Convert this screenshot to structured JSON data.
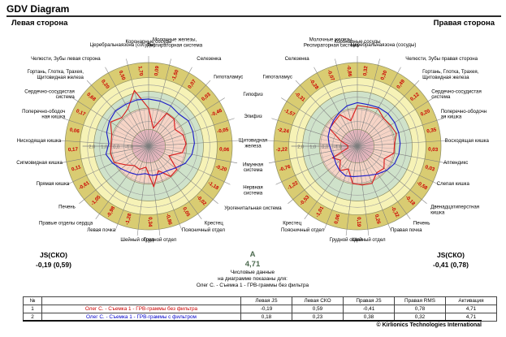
{
  "header": {
    "title": "GDV Diagram",
    "left_title": "Левая сторона",
    "right_title": "Правая сторона"
  },
  "left_summary": {
    "label": "JS(СКО)",
    "value": "-0,19 (0,59)"
  },
  "right_summary": {
    "label": "JS(СКО)",
    "value": "-0,41 (0,78)"
  },
  "center_info": {
    "grade": "А",
    "activation": "4,71",
    "note_lines": [
      "Числовые данные",
      "на диаграмме показаны для:",
      "Олег С. - Съемка 1 - ГРВ-граммы без фильтра"
    ]
  },
  "chart_data": [
    {
      "type": "radar",
      "title": "Левая сторона",
      "scale_ticks": [
        "2,0",
        "1,0",
        "0,0",
        "-1,0"
      ],
      "scale_values": [
        2.0,
        1.0,
        0.0,
        -1.0
      ],
      "categories": [
        "Коронарные сосуды",
        "Молочные железы,\nРеспираторная система",
        "Селезенка",
        "Гипоталамус",
        "Гипофиз",
        "Эпифиз",
        "Щитовидная\nжелеза",
        "Имунная\nсистема",
        "Нервная\nсистема",
        "Урогенитальная система",
        "Крестец",
        "Поясничный отдел",
        "Грудной отдел",
        "Шейный отдел",
        "Левая почка",
        "Правые отделы сердца",
        "Печень",
        "Прямая кишка",
        "Сигмовидная кишка",
        "Нисходящая кишка",
        "Поперечно-ободоч\nная кишка",
        "Сердечно-сосудистая\nсистема",
        "Гортань, Глотка, Трахея,\nЩитовидная железа",
        "Челюсти, Зубы левая сторона",
        "Церебральнаязона (сосуды)"
      ],
      "value_labels": [
        "0,09",
        "-1,50",
        "0,07",
        "0,03",
        "-0,46",
        "-0,05",
        "0,06",
        "-0,20",
        "-1,18",
        "-0,02",
        "0,05",
        "-0,86",
        "0,34",
        "-1,28",
        "-0,98",
        "-1,05",
        "-0,61",
        "0,11",
        "0,17",
        "0,06",
        "0,17",
        "0,68",
        "0,20",
        "0,50",
        "1,70"
      ],
      "series": [
        {
          "name": "ГРВ-граммы без фильтра",
          "color": "#d81e1e",
          "values": [
            0.09,
            -1.5,
            0.07,
            0.03,
            -0.46,
            -0.05,
            0.06,
            -0.2,
            -1.18,
            -0.02,
            0.05,
            -0.86,
            0.34,
            -1.28,
            -0.98,
            -1.05,
            -0.61,
            0.11,
            0.17,
            0.06,
            0.17,
            0.68,
            0.2,
            0.5,
            1.7
          ]
        },
        {
          "name": "ГРВ-граммы с фильтром",
          "color": "#1e1ec8",
          "values": [
            0.85,
            0.8,
            0.75,
            0.6,
            0.85,
            0.8,
            0.75,
            0.6,
            0.3,
            -0.2,
            -0.5,
            -0.55,
            -0.6,
            -0.75,
            -0.5,
            -0.35,
            -0.1,
            0.25,
            0.55,
            0.25,
            0.6,
            0.8,
            0.95,
            0.9,
            0.9
          ]
        }
      ]
    },
    {
      "type": "radar",
      "title": "Правая сторона",
      "scale_ticks": [
        "2,0",
        "1,0",
        "0,0",
        "-1,0"
      ],
      "scale_values": [
        2.0,
        1.0,
        0.0,
        -1.0
      ],
      "categories": [
        "Коронарные сосуды",
        "Церебральнаязона (сосуды)",
        "Челюсти, Зубы правая сторона",
        "Гортань, Глотка, Трахея,\nЩитовидная железа",
        "Сердечно-сосудистая\nсистема",
        "Поперечно-ободочн\nая кишка",
        "Восходящая кишка",
        "Аппендикс",
        "Слепая кишка",
        "Двенадцатиперстная\nкишка",
        "Печень",
        "Правая почка",
        "Шейный отдел",
        "Грудной отдел",
        "Поясничный отдел",
        "Крестец",
        "Урогенитальная система",
        "Нервная\nсистема",
        "Имунная\nсистема",
        "Щитовидная\nжелеза",
        "Эпифиз",
        "Гипофиз",
        "Гипоталамус",
        "Селезенка",
        "Молочные железы,\nРеспираторная система"
      ],
      "value_labels": [
        "0,32",
        "0,30",
        "0,49",
        "0,12",
        "0,20",
        "0,35",
        "0,03",
        "0,03",
        "-0,58",
        "-0,18",
        "-0,32",
        "0,26",
        "0,19",
        "0,06",
        "-1,01",
        "-0,53",
        "-1,22",
        "-0,76",
        "-2,22",
        "-2,24",
        "-1,57",
        "-0,31",
        "-0,28",
        "-0,07",
        "-0,86"
      ],
      "series": [
        {
          "name": "ГРВ-граммы без фильтра",
          "color": "#d81e1e",
          "values": [
            0.32,
            0.3,
            0.49,
            0.12,
            0.2,
            0.35,
            0.03,
            0.03,
            -0.58,
            -0.18,
            -0.32,
            0.26,
            0.19,
            0.06,
            -1.01,
            -0.53,
            -1.22,
            -0.76,
            -2.22,
            -2.24,
            -1.57,
            -0.31,
            -0.28,
            -0.07,
            -0.86
          ]
        },
        {
          "name": "ГРВ-граммы с фильтром",
          "color": "#1e1ec8",
          "values": [
            0.55,
            0.5,
            0.6,
            0.65,
            0.6,
            0.55,
            0.5,
            0.45,
            0.35,
            0.1,
            -0.2,
            -0.45,
            -0.55,
            -0.5,
            -0.4,
            -0.55,
            -0.75,
            -0.9,
            -0.85,
            -0.7,
            -0.5,
            -0.35,
            -0.15,
            0.1,
            0.4
          ]
        }
      ]
    }
  ],
  "table": {
    "headers": [
      "№",
      "",
      "Левая JS",
      "Левая СКО",
      "Правая JS",
      "Правая RMS",
      "Активация"
    ],
    "rows": [
      {
        "num": "1",
        "name": "Олег С. - Съемка 1 - ГРВ-граммы без фильтра",
        "values": [
          "-0,19",
          "0,59",
          "-0,41",
          "0,78",
          "4,71"
        ]
      },
      {
        "num": "2",
        "name": "Олег С. - Съемка 1 - ГРВ-граммы с фильтром",
        "values": [
          "0,18",
          "0,23",
          "0,38",
          "0,32",
          "4,71"
        ]
      }
    ]
  },
  "footer": {
    "copyright": "© Kirlionics Technologies International"
  },
  "colors": {
    "ring_outer": "#d9cc72",
    "ring_yellow": "#f6f2b6",
    "ring_green": "#cfe2ca",
    "ring_salmon": "#f6d4c6",
    "ring_center": "#edb9c1",
    "grid_line": "#8f8f66",
    "spoke_line": "#7d7d7d",
    "value_text": "#cc0000",
    "scale_text": "#6a6a6a",
    "series_red": "#d81e1e",
    "series_blue": "#1e1ec8"
  }
}
